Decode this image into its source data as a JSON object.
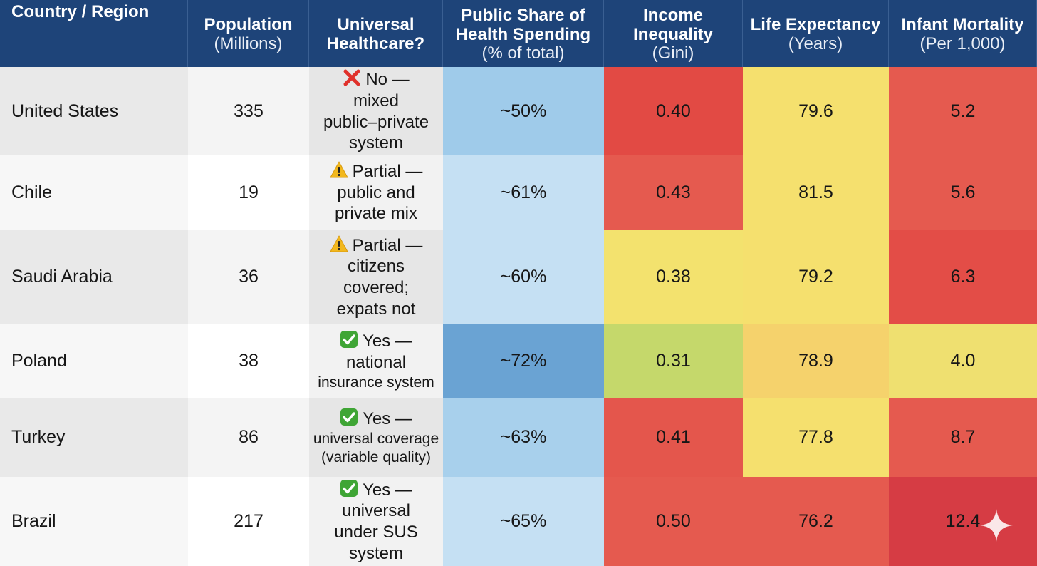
{
  "chart_data": {
    "type": "table",
    "columns": [
      {
        "key": "country",
        "title": "Country / Region",
        "subtitle": ""
      },
      {
        "key": "population",
        "title": "Population",
        "subtitle": "(Millions)"
      },
      {
        "key": "uhc",
        "title": "Universal Healthcare?",
        "subtitle": ""
      },
      {
        "key": "public_share",
        "title": "Public Share of Health Spending",
        "subtitle": "(% of total)"
      },
      {
        "key": "gini",
        "title": "Income Inequality",
        "subtitle": "(Gini)"
      },
      {
        "key": "life",
        "title": "Life Expectancy",
        "subtitle": "(Years)"
      },
      {
        "key": "infant",
        "title": "Infant Mortality",
        "subtitle": "(Per 1,000)"
      }
    ],
    "rows": [
      {
        "country": "United States",
        "population": "335",
        "uhc": {
          "status": "no",
          "icon": "cross-mark-icon",
          "lines": [
            "No —",
            "mixed",
            "public–private",
            "system"
          ]
        },
        "public_share": "~50%",
        "gini": "0.40",
        "life": "79.6",
        "infant": "5.2",
        "colors": {
          "public_share": "#9fcbea",
          "gini": "#e24a44",
          "life": "#f5e06e",
          "infant": "#e55a4f"
        }
      },
      {
        "country": "Chile",
        "population": "19",
        "uhc": {
          "status": "partial",
          "icon": "warning-icon",
          "lines": [
            "Partial —",
            "public and",
            "private mix"
          ]
        },
        "public_share": "~61%",
        "gini": "0.43",
        "life": "81.5",
        "infant": "5.6",
        "colors": {
          "public_share": "#c5e0f3",
          "gini": "#e55a4f",
          "life": "#f5e06e",
          "infant": "#e55a4f"
        }
      },
      {
        "country": "Saudi Arabia",
        "population": "36",
        "uhc": {
          "status": "partial",
          "icon": "warning-icon",
          "lines": [
            "Partial —",
            "citizens",
            "covered;",
            "expats not"
          ]
        },
        "public_share": "~60%",
        "gini": "0.38",
        "life": "79.2",
        "infant": "6.3",
        "colors": {
          "public_share": "#c5e0f3",
          "gini": "#f3e26e",
          "life": "#f5e06e",
          "infant": "#e34d47"
        }
      },
      {
        "country": "Poland",
        "population": "38",
        "uhc": {
          "status": "yes",
          "icon": "check-mark-icon",
          "lines": [
            "Yes —",
            "national",
            "insurance system"
          ]
        },
        "public_share": "~72%",
        "gini": "0.31",
        "life": "78.9",
        "infant": "4.0",
        "colors": {
          "public_share": "#6aa3d3",
          "gini": "#c5d86b",
          "life": "#f5d26c",
          "infant": "#efe070"
        }
      },
      {
        "country": "Turkey",
        "population": "86",
        "uhc": {
          "status": "yes",
          "icon": "check-mark-icon",
          "lines": [
            "Yes —",
            "universal coverage",
            "(variable quality)"
          ]
        },
        "public_share": "~63%",
        "gini": "0.41",
        "life": "77.8",
        "infant": "8.7",
        "colors": {
          "public_share": "#a8d0ec",
          "gini": "#e4564c",
          "life": "#f5e06e",
          "infant": "#e55a4f"
        }
      },
      {
        "country": "Brazil",
        "population": "217",
        "uhc": {
          "status": "yes",
          "icon": "check-mark-icon",
          "lines": [
            "Yes —",
            "universal",
            "under SUS",
            "system"
          ]
        },
        "public_share": "~65%",
        "gini": "0.50",
        "life": "76.2",
        "infant": "12.4",
        "colors": {
          "public_share": "#c5e0f3",
          "gini": "#e55a4f",
          "life": "#e55a4f",
          "infant": "#d63c44"
        }
      }
    ]
  },
  "style": {
    "header_bg": "#1e4479",
    "header_text": "#ffffff",
    "country_col_bg": [
      "#e9e9e9",
      "#f7f7f7"
    ],
    "population_col_bg": [
      "#f4f4f4",
      "#ffffff"
    ],
    "uhc_col_bg": [
      "#e6e6e6",
      "#f2f2f2"
    ],
    "status_colors": {
      "no": "#e0312b",
      "partial": "#f2b81d",
      "yes": "#3fa535"
    }
  }
}
